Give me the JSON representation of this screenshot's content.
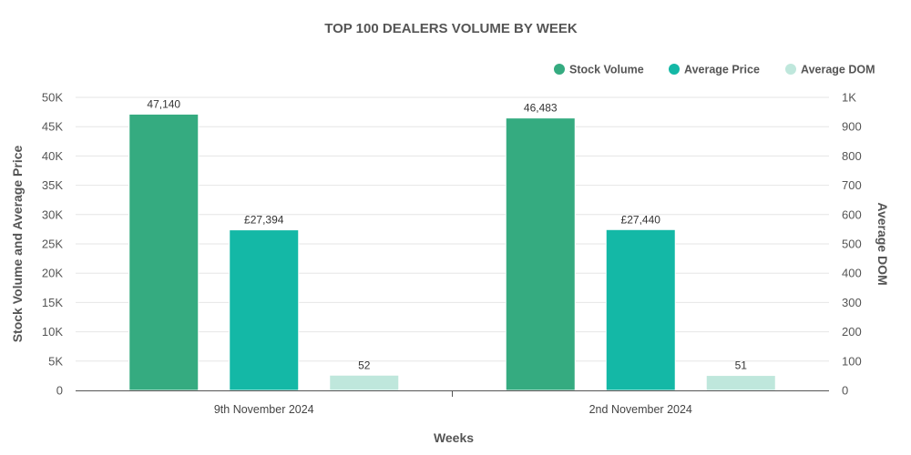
{
  "chart_data": {
    "type": "bar",
    "title": "TOP 100 DEALERS VOLUME BY WEEK",
    "xlabel": "Weeks",
    "ylabel": "Stock Volume and Average Price",
    "y2label": "Average DOM",
    "categories": [
      "9th November 2024",
      "2nd November 2024"
    ],
    "series": [
      {
        "name": "Stock Volume",
        "axis": "left",
        "values": [
          47140,
          46483
        ],
        "labels": [
          "47,140",
          "46,483"
        ],
        "color": "#35ab80"
      },
      {
        "name": "Average Price",
        "axis": "left",
        "values": [
          27394,
          27440
        ],
        "labels": [
          "£27,394",
          "£27,440"
        ],
        "color": "#14b8a6"
      },
      {
        "name": "Average DOM",
        "axis": "right",
        "values": [
          52,
          51
        ],
        "labels": [
          "52",
          "51"
        ],
        "color": "#bfe7dc"
      }
    ],
    "ylim": [
      0,
      50000
    ],
    "y2lim": [
      0,
      1000
    ],
    "yticks": [
      {
        "value": 0,
        "label": "0"
      },
      {
        "value": 5000,
        "label": "5K"
      },
      {
        "value": 10000,
        "label": "10K"
      },
      {
        "value": 15000,
        "label": "15K"
      },
      {
        "value": 20000,
        "label": "20K"
      },
      {
        "value": 25000,
        "label": "25K"
      },
      {
        "value": 30000,
        "label": "30K"
      },
      {
        "value": 35000,
        "label": "35K"
      },
      {
        "value": 40000,
        "label": "40K"
      },
      {
        "value": 45000,
        "label": "45K"
      },
      {
        "value": 50000,
        "label": "50K"
      }
    ],
    "y2ticks": [
      {
        "value": 0,
        "label": "0"
      },
      {
        "value": 100,
        "label": "100"
      },
      {
        "value": 200,
        "label": "200"
      },
      {
        "value": 300,
        "label": "300"
      },
      {
        "value": 400,
        "label": "400"
      },
      {
        "value": 500,
        "label": "500"
      },
      {
        "value": 600,
        "label": "600"
      },
      {
        "value": 700,
        "label": "700"
      },
      {
        "value": 800,
        "label": "800"
      },
      {
        "value": 900,
        "label": "900"
      },
      {
        "value": 1000,
        "label": "1K"
      }
    ],
    "grid": true,
    "legend_position": "top-right"
  }
}
